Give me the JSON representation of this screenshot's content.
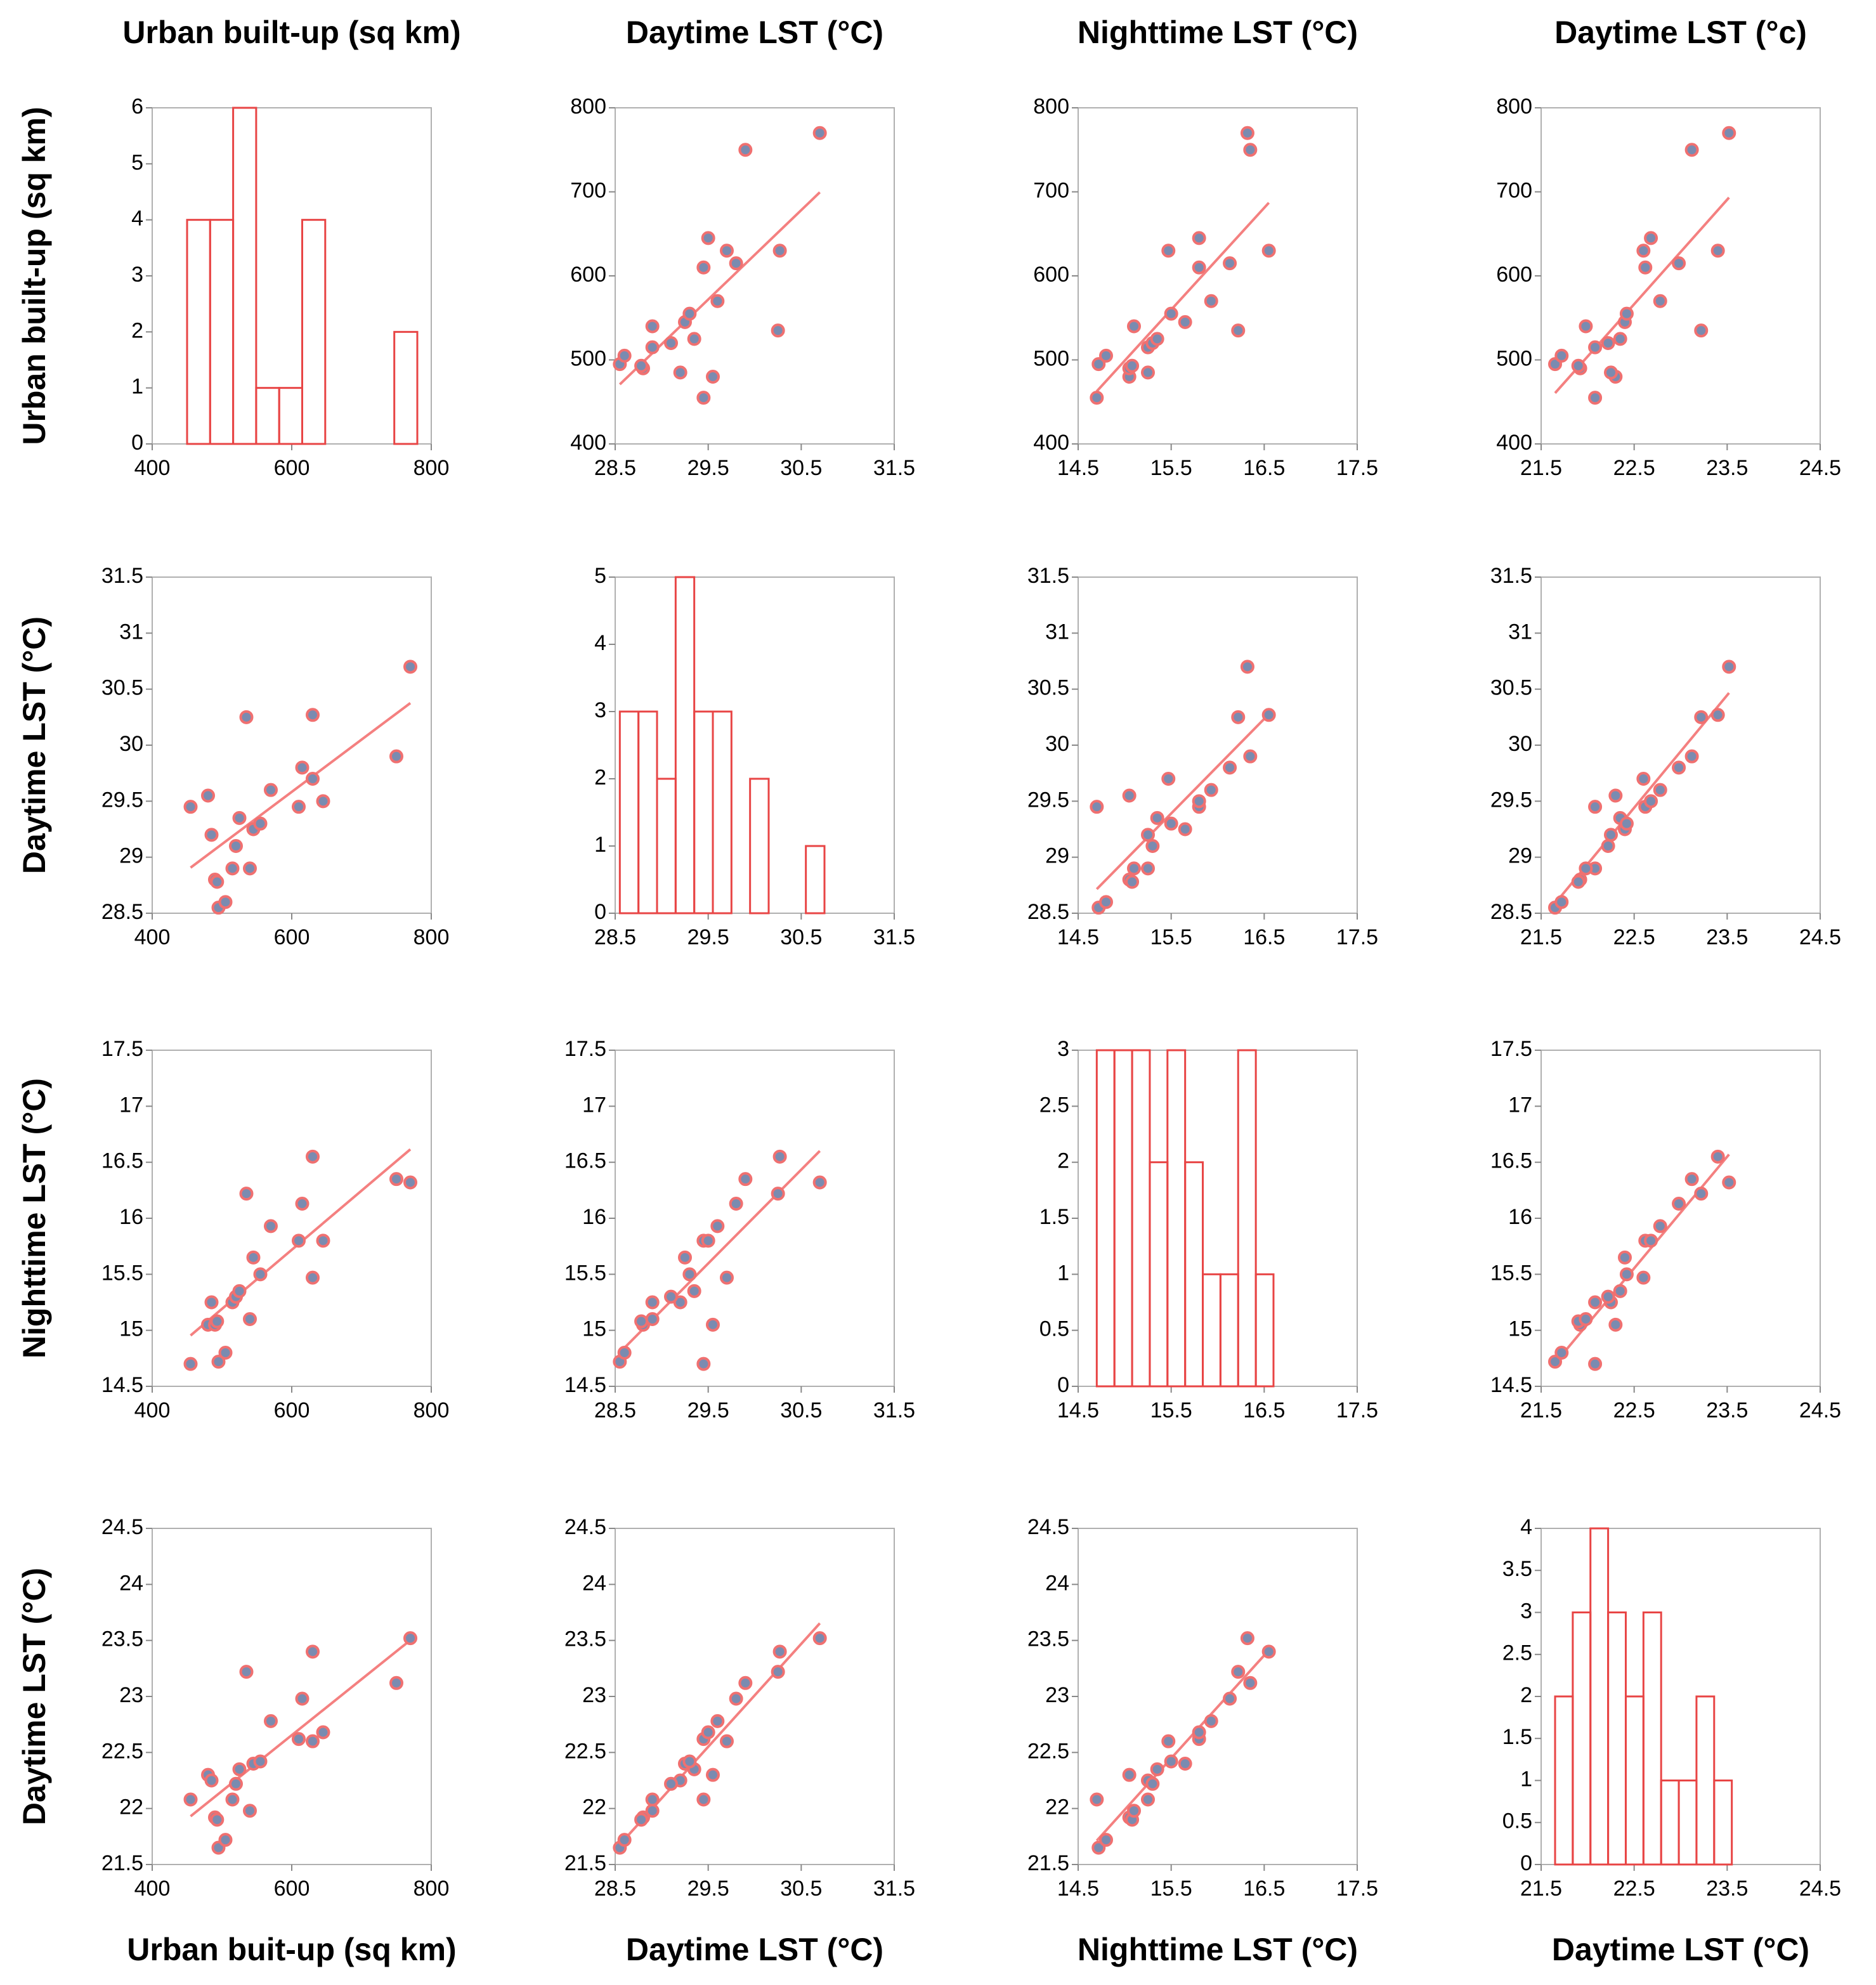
{
  "column_titles": [
    "Urban built-up (sq km)",
    "Daytime LST (°C)",
    "Nighttime LST (°C)",
    "Daytime LST (°c)"
  ],
  "row_labels": [
    "Urban built-up (sq km)",
    "Daytime LST (°C)",
    "Nighttime LST (°C)",
    "Daytime LST (°C)"
  ],
  "x_labels": [
    "Urban  buit-up (sq km)",
    "Daytime LST (°C)",
    "Nighttime LST (°C)",
    "Daytime LST (°C)"
  ],
  "chart_data": [
    {
      "type": "histogram",
      "bins": [
        450,
        483,
        516,
        549,
        582,
        615,
        648,
        681,
        714,
        747,
        780
      ],
      "values": [
        4,
        4,
        6,
        1,
        1,
        4,
        0,
        0,
        0,
        2
      ],
      "xlim": [
        400,
        800
      ],
      "ylim": [
        0,
        6
      ],
      "xticks": [
        400,
        600,
        800
      ],
      "yticks": [
        0,
        1,
        2,
        3,
        4,
        5,
        6
      ],
      "color": "#e84545"
    },
    {
      "type": "scatter",
      "x": [
        29.45,
        29.55,
        29.2,
        28.8,
        28.78,
        28.55,
        28.6,
        28.9,
        29.1,
        29.35,
        30.25,
        28.9,
        29.25,
        29.3,
        29.6,
        29.45,
        29.8,
        30.27,
        29.7,
        29.5,
        29.9,
        30.7
      ],
      "values": [
        455,
        480,
        485,
        490,
        493,
        495,
        505,
        515,
        520,
        525,
        535,
        540,
        545,
        555,
        570,
        610,
        615,
        630,
        630,
        645,
        750,
        770
      ],
      "xlim": [
        28.5,
        31.5
      ],
      "ylim": [
        400,
        800
      ],
      "xticks": [
        28.5,
        29.5,
        30.5,
        31.5
      ],
      "yticks": [
        400,
        500,
        600,
        700,
        800
      ],
      "color": "#7a8bb0",
      "edge_color": "#f07070",
      "trendline": true,
      "trend_color": "#f48080"
    },
    {
      "type": "scatter",
      "x": [
        14.7,
        15.05,
        15.25,
        15.05,
        15.08,
        14.72,
        14.8,
        15.25,
        15.3,
        15.35,
        16.22,
        15.1,
        15.65,
        15.5,
        15.93,
        15.8,
        16.13,
        16.55,
        15.47,
        15.8,
        16.35,
        16.32
      ],
      "values": [
        455,
        480,
        485,
        490,
        493,
        495,
        505,
        515,
        520,
        525,
        535,
        540,
        545,
        555,
        570,
        610,
        615,
        630,
        630,
        645,
        750,
        770
      ],
      "xlim": [
        14.5,
        17.5
      ],
      "ylim": [
        400,
        800
      ],
      "xticks": [
        14.5,
        15.5,
        16.5,
        17.5
      ],
      "yticks": [
        400,
        500,
        600,
        700,
        800
      ],
      "color": "#7a8bb0",
      "edge_color": "#f07070",
      "trendline": true,
      "trend_color": "#f48080"
    },
    {
      "type": "scatter",
      "x": [
        22.08,
        22.3,
        22.25,
        21.92,
        21.9,
        21.65,
        21.72,
        22.08,
        22.22,
        22.35,
        23.22,
        21.98,
        22.4,
        22.42,
        22.78,
        22.62,
        22.98,
        23.4,
        22.6,
        22.68,
        23.12,
        23.52
      ],
      "values": [
        455,
        480,
        485,
        490,
        493,
        495,
        505,
        515,
        520,
        525,
        535,
        540,
        545,
        555,
        570,
        610,
        615,
        630,
        630,
        645,
        750,
        770
      ],
      "xlim": [
        21.5,
        24.5
      ],
      "ylim": [
        400,
        800
      ],
      "xticks": [
        21.5,
        22.5,
        23.5,
        24.5
      ],
      "yticks": [
        400,
        500,
        600,
        700,
        800
      ],
      "color": "#7a8bb0",
      "edge_color": "#f07070",
      "trendline": true,
      "trend_color": "#f48080"
    },
    {
      "type": "scatter",
      "x": [
        455,
        480,
        485,
        490,
        493,
        495,
        505,
        515,
        520,
        525,
        535,
        540,
        545,
        555,
        570,
        610,
        615,
        630,
        630,
        645,
        750,
        770
      ],
      "values": [
        29.45,
        29.55,
        29.2,
        28.8,
        28.78,
        28.55,
        28.6,
        28.9,
        29.1,
        29.35,
        30.25,
        28.9,
        29.25,
        29.3,
        29.6,
        29.45,
        29.8,
        30.27,
        29.7,
        29.5,
        29.9,
        30.7
      ],
      "xlim": [
        400,
        800
      ],
      "ylim": [
        28.5,
        31.5
      ],
      "xticks": [
        400,
        600,
        800
      ],
      "yticks": [
        28.5,
        29,
        29.5,
        30,
        30.5,
        31,
        31.5
      ],
      "color": "#7a8bb0",
      "edge_color": "#f07070",
      "trendline": true,
      "trend_color": "#f48080"
    },
    {
      "type": "histogram",
      "bins": [
        28.55,
        28.75,
        28.95,
        29.15,
        29.35,
        29.55,
        29.75,
        29.95,
        30.15,
        30.35,
        30.55,
        30.75
      ],
      "values": [
        3,
        3,
        2,
        5,
        3,
        3,
        0,
        2,
        0,
        0,
        1
      ],
      "xlim": [
        28.5,
        31.5
      ],
      "ylim": [
        0,
        5
      ],
      "xticks": [
        28.5,
        29.5,
        30.5,
        31.5
      ],
      "yticks": [
        0,
        1,
        2,
        3,
        4,
        5
      ],
      "color": "#e84545"
    },
    {
      "type": "scatter",
      "x": [
        14.7,
        15.05,
        15.25,
        15.05,
        15.08,
        14.72,
        14.8,
        15.25,
        15.3,
        15.35,
        16.22,
        15.1,
        15.65,
        15.5,
        15.93,
        15.8,
        16.13,
        16.55,
        15.47,
        15.8,
        16.35,
        16.32
      ],
      "values": [
        29.45,
        29.55,
        29.2,
        28.8,
        28.78,
        28.55,
        28.6,
        28.9,
        29.1,
        29.35,
        30.25,
        28.9,
        29.25,
        29.3,
        29.6,
        29.45,
        29.8,
        30.27,
        29.7,
        29.5,
        29.9,
        30.7
      ],
      "xlim": [
        14.5,
        17.5
      ],
      "ylim": [
        28.5,
        31.5
      ],
      "xticks": [
        14.5,
        15.5,
        16.5,
        17.5
      ],
      "yticks": [
        28.5,
        29,
        29.5,
        30,
        30.5,
        31,
        31.5
      ],
      "color": "#7a8bb0",
      "edge_color": "#f07070",
      "trendline": true,
      "trend_color": "#f48080"
    },
    {
      "type": "scatter",
      "x": [
        22.08,
        22.3,
        22.25,
        21.92,
        21.9,
        21.65,
        21.72,
        22.08,
        22.22,
        22.35,
        23.22,
        21.98,
        22.4,
        22.42,
        22.78,
        22.62,
        22.98,
        23.4,
        22.6,
        22.68,
        23.12,
        23.52
      ],
      "values": [
        29.45,
        29.55,
        29.2,
        28.8,
        28.78,
        28.55,
        28.6,
        28.9,
        29.1,
        29.35,
        30.25,
        28.9,
        29.25,
        29.3,
        29.6,
        29.45,
        29.8,
        30.27,
        29.7,
        29.5,
        29.9,
        30.7
      ],
      "xlim": [
        21.5,
        24.5
      ],
      "ylim": [
        28.5,
        31.5
      ],
      "xticks": [
        21.5,
        22.5,
        23.5,
        24.5
      ],
      "yticks": [
        28.5,
        29,
        29.5,
        30,
        30.5,
        31,
        31.5
      ],
      "color": "#7a8bb0",
      "edge_color": "#f07070",
      "trendline": true,
      "trend_color": "#f48080"
    },
    {
      "type": "scatter",
      "x": [
        455,
        480,
        485,
        490,
        493,
        495,
        505,
        515,
        520,
        525,
        535,
        540,
        545,
        555,
        570,
        610,
        615,
        630,
        630,
        645,
        750,
        770
      ],
      "values": [
        14.7,
        15.05,
        15.25,
        15.05,
        15.08,
        14.72,
        14.8,
        15.25,
        15.3,
        15.35,
        16.22,
        15.1,
        15.65,
        15.5,
        15.93,
        15.8,
        16.13,
        16.55,
        15.47,
        15.8,
        16.35,
        16.32
      ],
      "xlim": [
        400,
        800
      ],
      "ylim": [
        14.5,
        17.5
      ],
      "xticks": [
        400,
        600,
        800
      ],
      "yticks": [
        14.5,
        15,
        15.5,
        16,
        16.5,
        17,
        17.5
      ],
      "color": "#7a8bb0",
      "edge_color": "#f07070",
      "trendline": true,
      "trend_color": "#f48080"
    },
    {
      "type": "scatter",
      "x": [
        29.45,
        29.55,
        29.2,
        28.8,
        28.78,
        28.55,
        28.6,
        28.9,
        29.1,
        29.35,
        30.25,
        28.9,
        29.25,
        29.3,
        29.6,
        29.45,
        29.8,
        30.27,
        29.7,
        29.5,
        29.9,
        30.7
      ],
      "values": [
        14.7,
        15.05,
        15.25,
        15.05,
        15.08,
        14.72,
        14.8,
        15.25,
        15.3,
        15.35,
        16.22,
        15.1,
        15.65,
        15.5,
        15.93,
        15.8,
        16.13,
        16.55,
        15.47,
        15.8,
        16.35,
        16.32
      ],
      "xlim": [
        28.5,
        31.5
      ],
      "ylim": [
        14.5,
        17.5
      ],
      "xticks": [
        28.5,
        29.5,
        30.5,
        31.5
      ],
      "yticks": [
        14.5,
        15,
        15.5,
        16,
        16.5,
        17,
        17.5
      ],
      "color": "#7a8bb0",
      "edge_color": "#f07070",
      "trendline": true,
      "trend_color": "#f48080"
    },
    {
      "type": "histogram",
      "bins": [
        14.7,
        14.89,
        15.08,
        15.27,
        15.46,
        15.65,
        15.84,
        16.03,
        16.22,
        16.41,
        16.6
      ],
      "values": [
        3,
        3,
        3,
        2,
        3,
        2,
        1,
        1,
        3,
        1
      ],
      "xlim": [
        14.5,
        17.5
      ],
      "ylim": [
        0,
        3
      ],
      "xticks": [
        14.5,
        15.5,
        16.5,
        17.5
      ],
      "yticks": [
        0,
        0.5,
        1,
        1.5,
        2,
        2.5,
        3
      ],
      "color": "#e84545"
    },
    {
      "type": "scatter",
      "x": [
        22.08,
        22.3,
        22.25,
        21.92,
        21.9,
        21.65,
        21.72,
        22.08,
        22.22,
        22.35,
        23.22,
        21.98,
        22.4,
        22.42,
        22.78,
        22.62,
        22.98,
        23.4,
        22.6,
        22.68,
        23.12,
        23.52
      ],
      "values": [
        14.7,
        15.05,
        15.25,
        15.05,
        15.08,
        14.72,
        14.8,
        15.25,
        15.3,
        15.35,
        16.22,
        15.1,
        15.65,
        15.5,
        15.93,
        15.8,
        16.13,
        16.55,
        15.47,
        15.8,
        16.35,
        16.32
      ],
      "xlim": [
        21.5,
        24.5
      ],
      "ylim": [
        14.5,
        17.5
      ],
      "xticks": [
        21.5,
        22.5,
        23.5,
        24.5
      ],
      "yticks": [
        14.5,
        15,
        15.5,
        16,
        16.5,
        17,
        17.5
      ],
      "color": "#7a8bb0",
      "edge_color": "#f07070",
      "trendline": true,
      "trend_color": "#f48080"
    },
    {
      "type": "scatter",
      "x": [
        455,
        480,
        485,
        490,
        493,
        495,
        505,
        515,
        520,
        525,
        535,
        540,
        545,
        555,
        570,
        610,
        615,
        630,
        630,
        645,
        750,
        770
      ],
      "values": [
        22.08,
        22.3,
        22.25,
        21.92,
        21.9,
        21.65,
        21.72,
        22.08,
        22.22,
        22.35,
        23.22,
        21.98,
        22.4,
        22.42,
        22.78,
        22.62,
        22.98,
        23.4,
        22.6,
        22.68,
        23.12,
        23.52
      ],
      "xlim": [
        400,
        800
      ],
      "ylim": [
        21.5,
        24.5
      ],
      "xticks": [
        400,
        600,
        800
      ],
      "yticks": [
        21.5,
        22,
        22.5,
        23,
        23.5,
        24,
        24.5
      ],
      "color": "#7a8bb0",
      "edge_color": "#f07070",
      "trendline": true,
      "trend_color": "#f48080"
    },
    {
      "type": "scatter",
      "x": [
        29.45,
        29.55,
        29.2,
        28.8,
        28.78,
        28.55,
        28.6,
        28.9,
        29.1,
        29.35,
        30.25,
        28.9,
        29.25,
        29.3,
        29.6,
        29.45,
        29.8,
        30.27,
        29.7,
        29.5,
        29.9,
        30.7
      ],
      "values": [
        22.08,
        22.3,
        22.25,
        21.92,
        21.9,
        21.65,
        21.72,
        22.08,
        22.22,
        22.35,
        23.22,
        21.98,
        22.4,
        22.42,
        22.78,
        22.62,
        22.98,
        23.4,
        22.6,
        22.68,
        23.12,
        23.52
      ],
      "xlim": [
        28.5,
        31.5
      ],
      "ylim": [
        21.5,
        24.5
      ],
      "xticks": [
        28.5,
        29.5,
        30.5,
        31.5
      ],
      "yticks": [
        21.5,
        22,
        22.5,
        23,
        23.5,
        24,
        24.5
      ],
      "color": "#7a8bb0",
      "edge_color": "#f07070",
      "trendline": true,
      "trend_color": "#f48080"
    },
    {
      "type": "scatter",
      "x": [
        14.7,
        15.05,
        15.25,
        15.05,
        15.08,
        14.72,
        14.8,
        15.25,
        15.3,
        15.35,
        16.22,
        15.1,
        15.65,
        15.5,
        15.93,
        15.8,
        16.13,
        16.55,
        15.47,
        15.8,
        16.35,
        16.32
      ],
      "values": [
        22.08,
        22.3,
        22.25,
        21.92,
        21.9,
        21.65,
        21.72,
        22.08,
        22.22,
        22.35,
        23.22,
        21.98,
        22.4,
        22.42,
        22.78,
        22.62,
        22.98,
        23.4,
        22.6,
        22.68,
        23.12,
        23.52
      ],
      "xlim": [
        14.5,
        17.5
      ],
      "ylim": [
        21.5,
        24.5
      ],
      "xticks": [
        14.5,
        15.5,
        16.5,
        17.5
      ],
      "yticks": [
        21.5,
        22,
        22.5,
        23,
        23.5,
        24,
        24.5
      ],
      "color": "#7a8bb0",
      "edge_color": "#f07070",
      "trendline": true,
      "trend_color": "#f48080"
    },
    {
      "type": "histogram",
      "bins": [
        21.65,
        21.84,
        22.03,
        22.22,
        22.41,
        22.6,
        22.79,
        22.98,
        23.17,
        23.36,
        23.55
      ],
      "values": [
        2,
        3,
        4,
        3,
        2,
        3,
        1,
        1,
        2,
        1
      ],
      "xlim": [
        21.5,
        24.5
      ],
      "ylim": [
        0,
        4
      ],
      "xticks": [
        21.5,
        22.5,
        23.5,
        24.5
      ],
      "yticks": [
        0,
        0.5,
        1,
        1.5,
        2,
        2.5,
        3,
        3.5,
        4
      ],
      "color": "#e84545"
    }
  ]
}
